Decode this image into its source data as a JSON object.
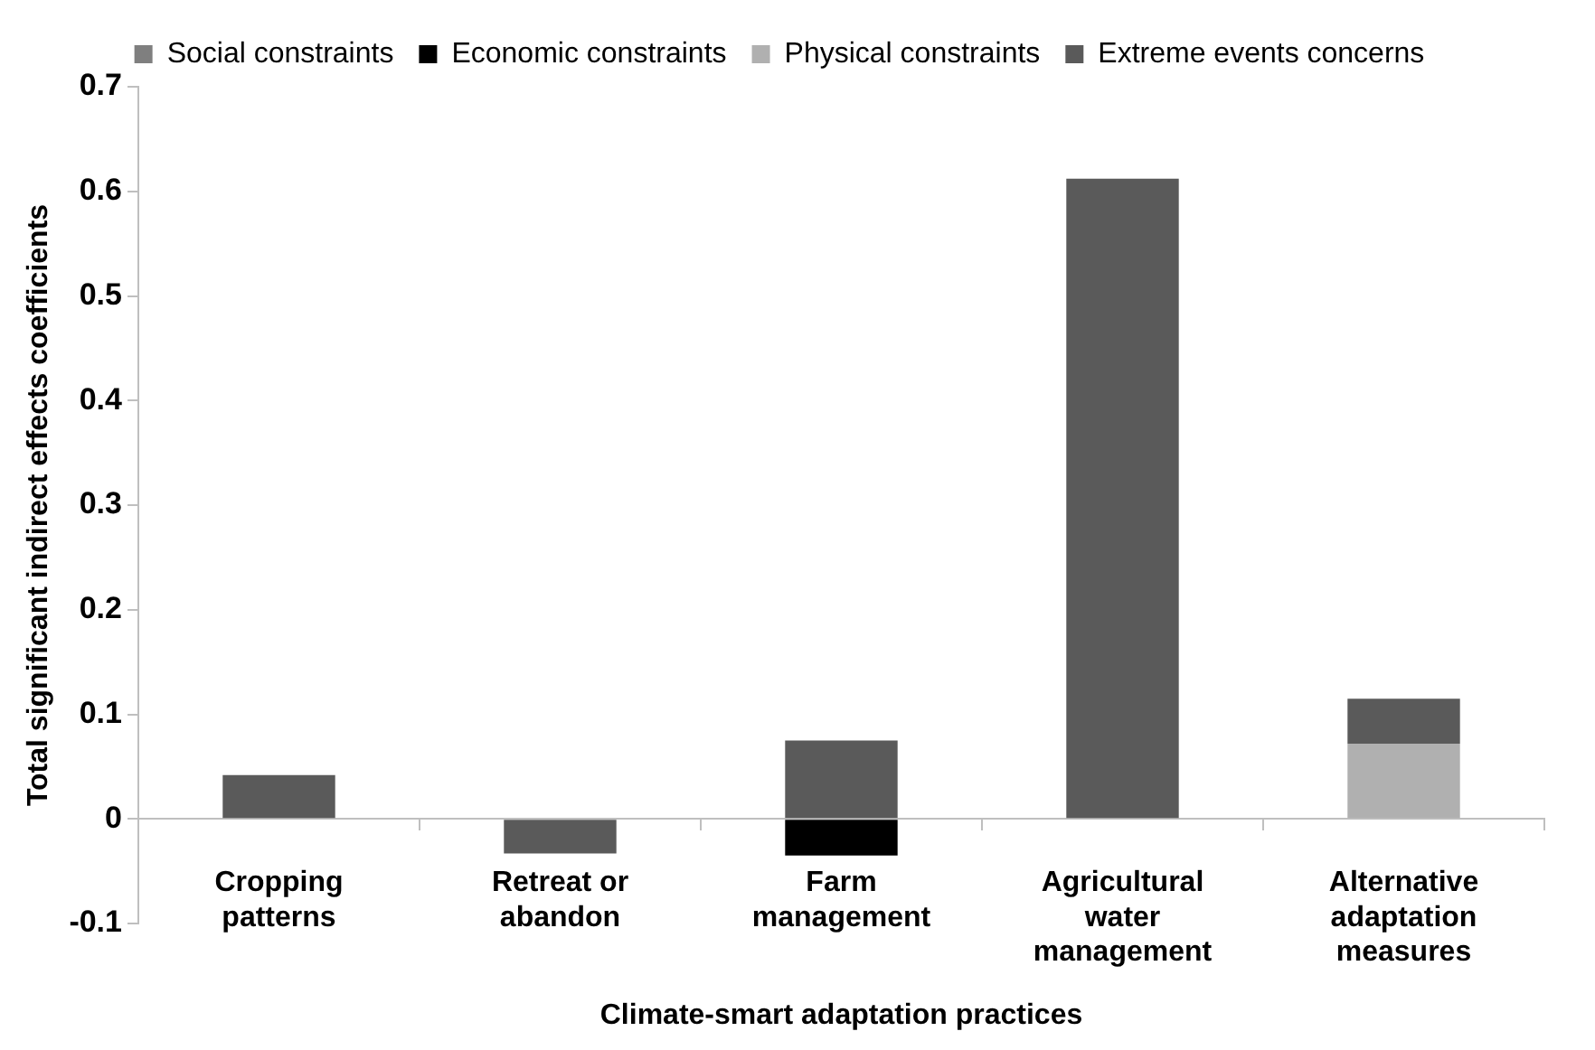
{
  "chart_data": {
    "type": "bar",
    "stacked": true,
    "xlabel": "Climate-smart adaptation practices",
    "ylabel": "Total significant indirect effects coefficients",
    "categories": [
      "Cropping patterns",
      "Retreat or abandon",
      "Farm management",
      "Agricultural water management",
      "Alternative adaptation measures"
    ],
    "series": [
      {
        "name": "Social constraints",
        "color": "#7f7f7f",
        "values": [
          null,
          null,
          null,
          null,
          null
        ]
      },
      {
        "name": "Economic constraints",
        "color": "#000000",
        "values": [
          null,
          null,
          -0.035,
          null,
          null
        ]
      },
      {
        "name": "Physical constraints",
        "color": "#b0b0b0",
        "values": [
          null,
          null,
          null,
          null,
          0.072
        ]
      },
      {
        "name": "Extreme events concerns",
        "color": "#5a5a5a",
        "values": [
          0.042,
          -0.033,
          0.075,
          0.612,
          0.043
        ]
      }
    ],
    "ylim": [
      -0.1,
      0.7
    ],
    "yticks": [
      -0.1,
      0,
      0.1,
      0.2,
      0.3,
      0.4,
      0.5,
      0.6,
      0.7
    ],
    "grid": false,
    "legend": "top"
  }
}
